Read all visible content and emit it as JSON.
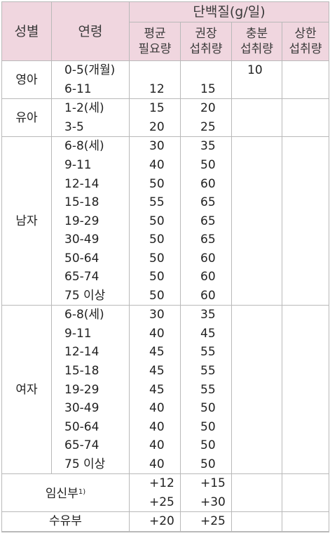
{
  "header": {
    "sex": "성별",
    "age": "연령",
    "nutrient": "단백질(g/일)",
    "ear": [
      "평균",
      "필요량"
    ],
    "rni": [
      "권장",
      "섭취량"
    ],
    "ai": [
      "충분",
      "섭취량"
    ],
    "ul": [
      "상한",
      "섭취량"
    ]
  },
  "groups": [
    {
      "label": "영아",
      "rows": [
        {
          "age": "0-5(개월)",
          "ear": "",
          "rni": "",
          "ai": "10",
          "ul": ""
        },
        {
          "age": "6-11",
          "ear": "12",
          "rni": "15",
          "ai": "",
          "ul": ""
        }
      ]
    },
    {
      "label": "유아",
      "rows": [
        {
          "age": "1-2(세)",
          "ear": "15",
          "rni": "20",
          "ai": "",
          "ul": ""
        },
        {
          "age": "3-5",
          "ear": "20",
          "rni": "25",
          "ai": "",
          "ul": ""
        }
      ]
    },
    {
      "label": "남자",
      "rows": [
        {
          "age": "6-8(세)",
          "ear": "30",
          "rni": "35",
          "ai": "",
          "ul": ""
        },
        {
          "age": "9-11",
          "ear": "40",
          "rni": "50",
          "ai": "",
          "ul": ""
        },
        {
          "age": "12-14",
          "ear": "50",
          "rni": "60",
          "ai": "",
          "ul": ""
        },
        {
          "age": "15-18",
          "ear": "55",
          "rni": "65",
          "ai": "",
          "ul": ""
        },
        {
          "age": "19-29",
          "ear": "50",
          "rni": "65",
          "ai": "",
          "ul": ""
        },
        {
          "age": "30-49",
          "ear": "50",
          "rni": "65",
          "ai": "",
          "ul": ""
        },
        {
          "age": "50-64",
          "ear": "50",
          "rni": "60",
          "ai": "",
          "ul": ""
        },
        {
          "age": "65-74",
          "ear": "50",
          "rni": "60",
          "ai": "",
          "ul": ""
        },
        {
          "age": "75 이상",
          "ear": "50",
          "rni": "60",
          "ai": "",
          "ul": ""
        }
      ]
    },
    {
      "label": "여자",
      "rows": [
        {
          "age": "6-8(세)",
          "ear": "30",
          "rni": "35",
          "ai": "",
          "ul": ""
        },
        {
          "age": "9-11",
          "ear": "40",
          "rni": "45",
          "ai": "",
          "ul": ""
        },
        {
          "age": "12-14",
          "ear": "45",
          "rni": "55",
          "ai": "",
          "ul": ""
        },
        {
          "age": "15-18",
          "ear": "45",
          "rni": "55",
          "ai": "",
          "ul": ""
        },
        {
          "age": "19-29",
          "ear": "45",
          "rni": "55",
          "ai": "",
          "ul": ""
        },
        {
          "age": "30-49",
          "ear": "40",
          "rni": "50",
          "ai": "",
          "ul": ""
        },
        {
          "age": "50-64",
          "ear": "40",
          "rni": "50",
          "ai": "",
          "ul": ""
        },
        {
          "age": "65-74",
          "ear": "40",
          "rni": "50",
          "ai": "",
          "ul": ""
        },
        {
          "age": "75 이상",
          "ear": "40",
          "rni": "50",
          "ai": "",
          "ul": ""
        }
      ]
    }
  ],
  "pregnant": {
    "label": "임신부",
    "footnote": "1)",
    "rows": [
      {
        "ear": "+12",
        "rni": "+15"
      },
      {
        "ear": "+25",
        "rni": "+30"
      }
    ]
  },
  "lactating": {
    "label": "수유부",
    "ear": "+20",
    "rni": "+25"
  }
}
